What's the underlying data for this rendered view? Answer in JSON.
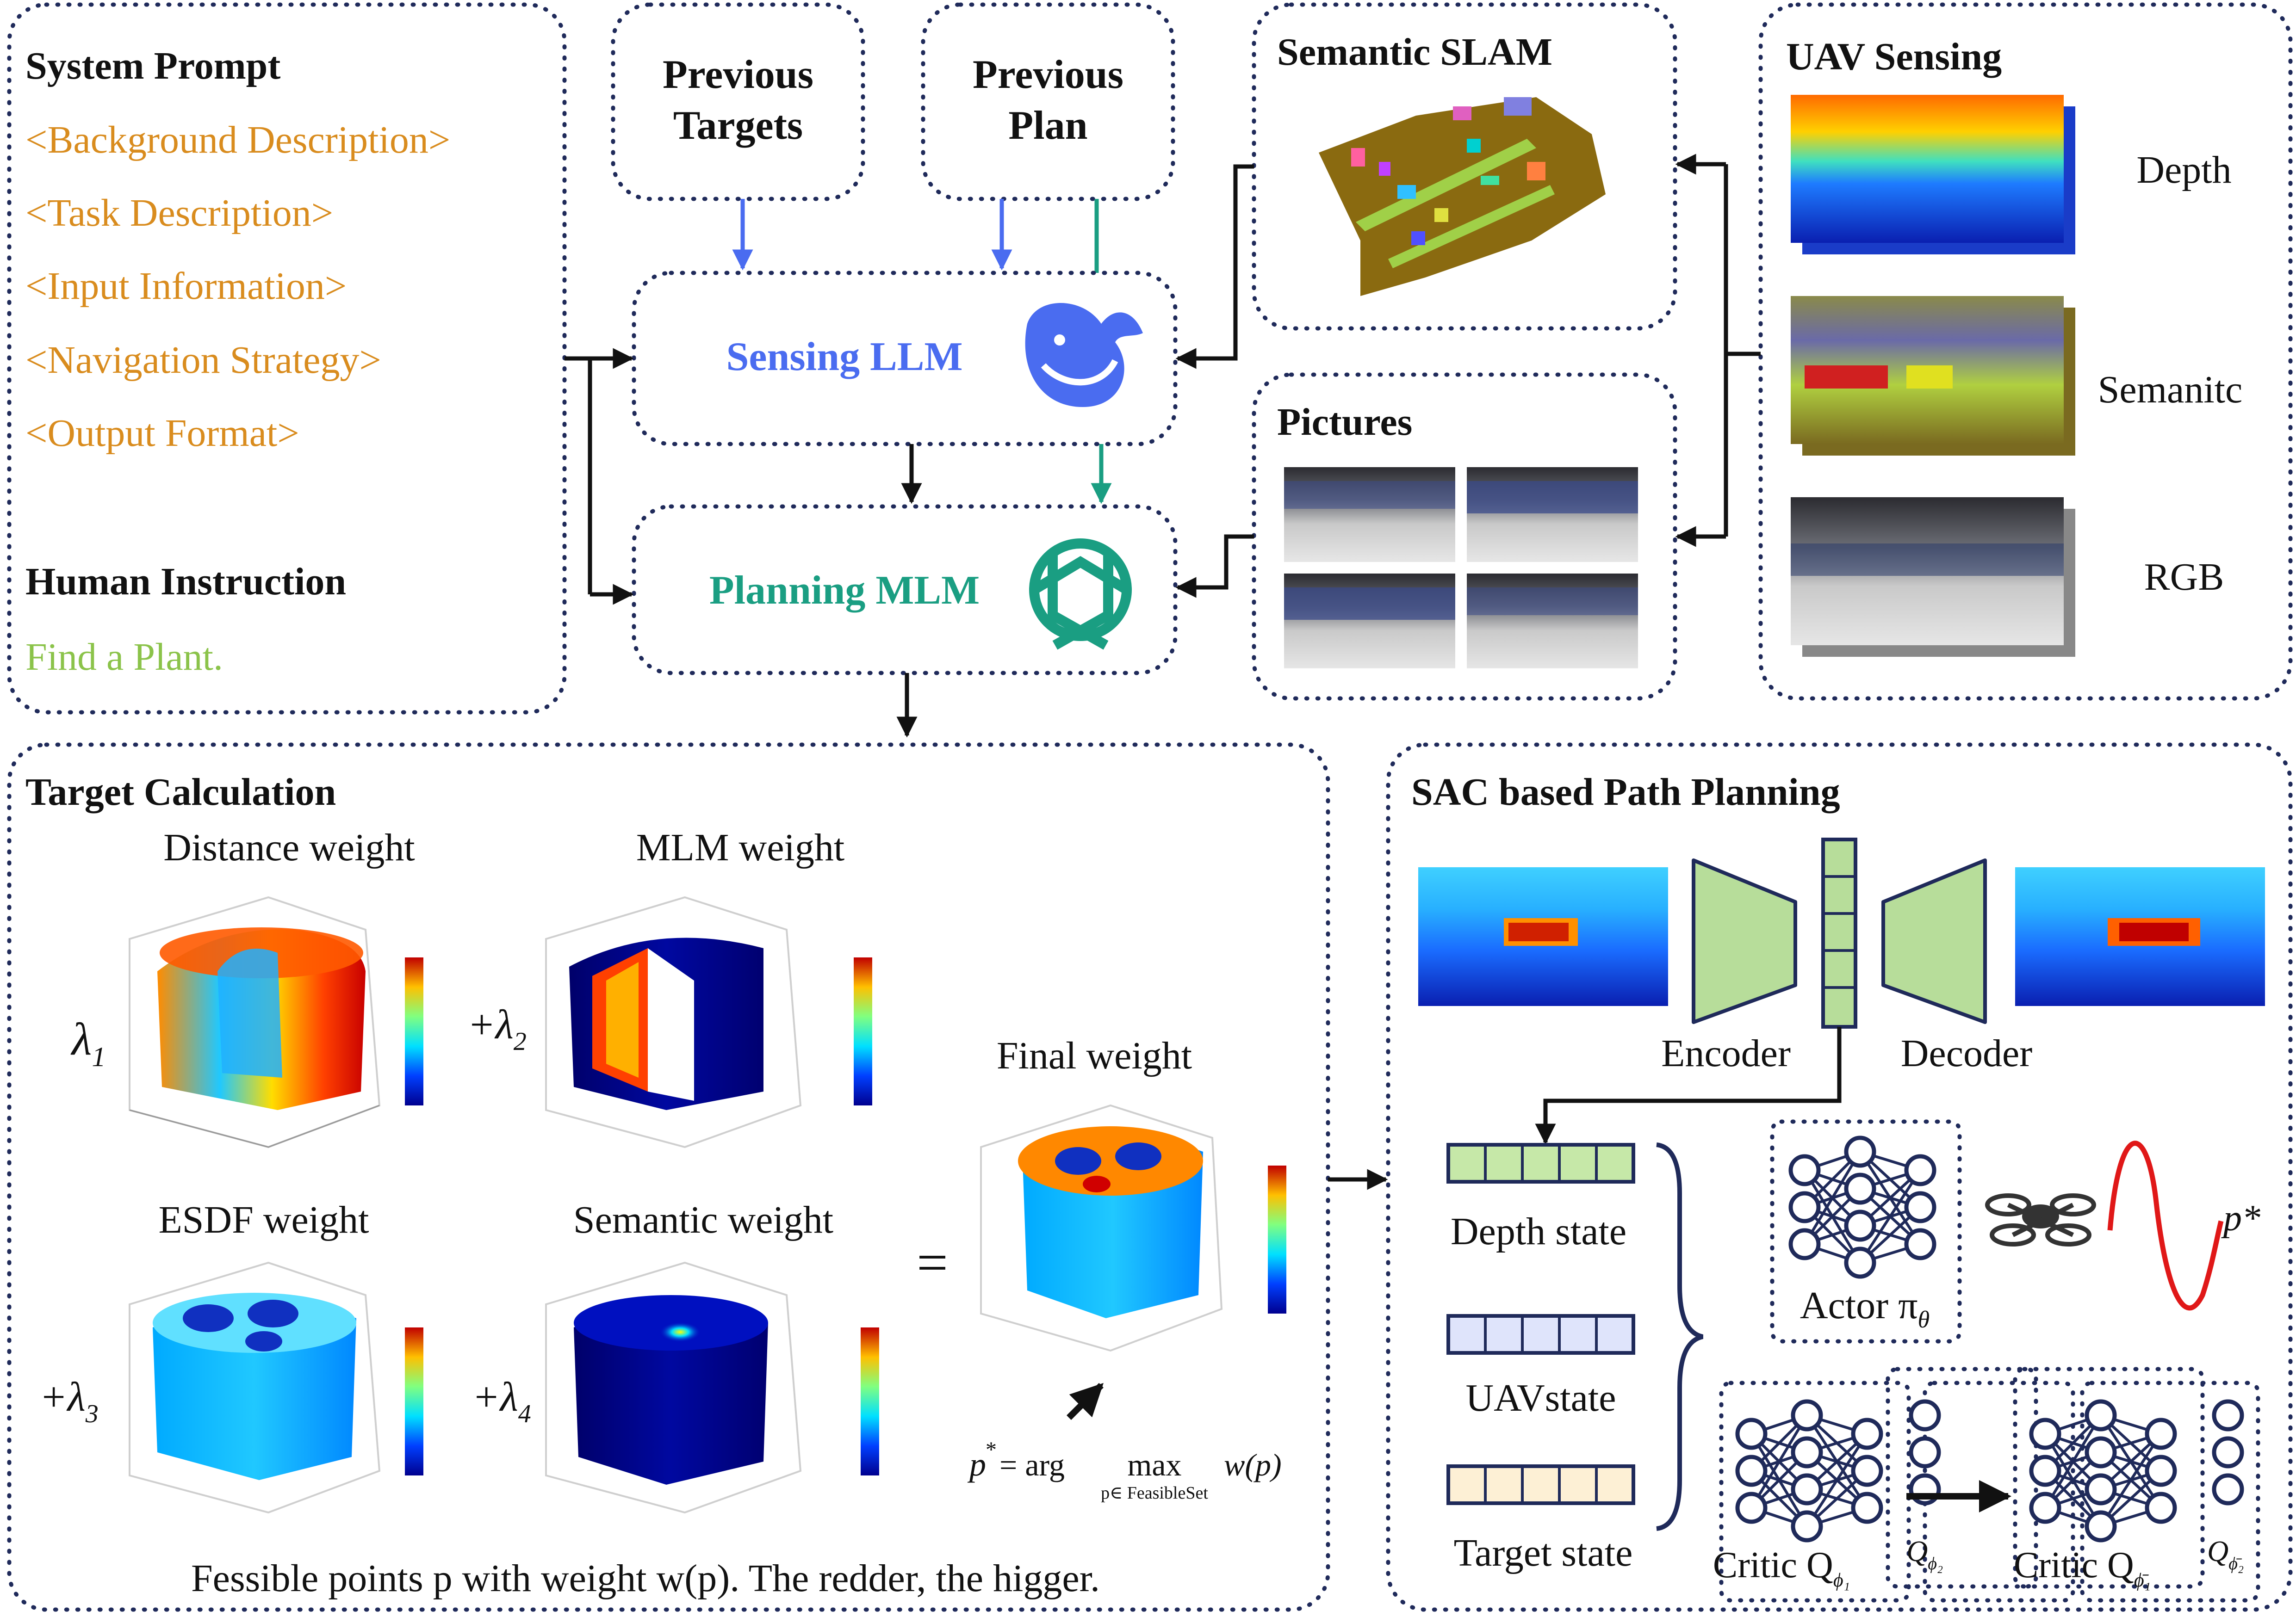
{
  "colors": {
    "orange": "#d98c1e",
    "green_text": "#8bc34a",
    "blue": "#4a6cf0",
    "teal": "#1a9e82",
    "box_border": "#1f2a5a",
    "encoder_fill": "#b7dd9a"
  },
  "system_prompt": {
    "title": "System Prompt",
    "items": [
      "<Background Description>",
      "<Task Description>",
      "<Input Information>",
      "<Navigation Strategy>",
      "<Output Format>"
    ],
    "human_title": "Human Instruction",
    "human_text": "Find a Plant."
  },
  "previous_targets": [
    "Previous",
    "Targets"
  ],
  "previous_plan": [
    "Previous",
    "Plan"
  ],
  "sensing_llm": "Sensing LLM",
  "planning_mlm": "Planning MLM",
  "icons": {
    "sensing_llm": "whale-logo-icon",
    "planning_mlm": "knot-logo-icon"
  },
  "semantic_slam": "Semantic SLAM",
  "pictures": "Pictures",
  "uav_sensing": {
    "title": "UAV Sensing",
    "depth": "Depth",
    "semantic": "Semanitc",
    "rgb": "RGB"
  },
  "target_calc": {
    "title": "Target Calculation",
    "distance": "Distance weight",
    "mlm": "MLM weight",
    "esdf": "ESDF weight",
    "semantic": "Semantic weight",
    "final": "Final weight",
    "equals": "=",
    "lambda1": "λ",
    "lambda1_sub": "1",
    "lambda2": "+λ",
    "lambda2_sub": "2",
    "lambda3": "+λ",
    "lambda3_sub": "3",
    "lambda4": "+λ",
    "lambda4_sub": "4",
    "formula_p": "p",
    "formula_star": "*",
    "formula_eq": "= arg",
    "formula_max": "max",
    "formula_sub": "p∈ FeasibleSet",
    "formula_w": "w(p)",
    "caption": "Fessible points  p  with weight  w(p). The redder, the higger."
  },
  "sac": {
    "title": "SAC based Path Planning",
    "encoder": "Encoder",
    "decoder": "Decoder",
    "depth_state": "Depth state",
    "uav_state": "UAVstate",
    "target_state": "Target state",
    "actor": "Actor π",
    "actor_sub": "θ",
    "critic1": "Critic Q",
    "critic1_sub": "ϕ₁",
    "critic1_side": "Q",
    "critic1_side_sub": "ϕ₂",
    "critic2": "Critic Q",
    "critic2_sub": "ϕ̄₁",
    "critic2_side": "Q",
    "critic2_side_sub": "ϕ̄₂",
    "p_star": "p*"
  }
}
